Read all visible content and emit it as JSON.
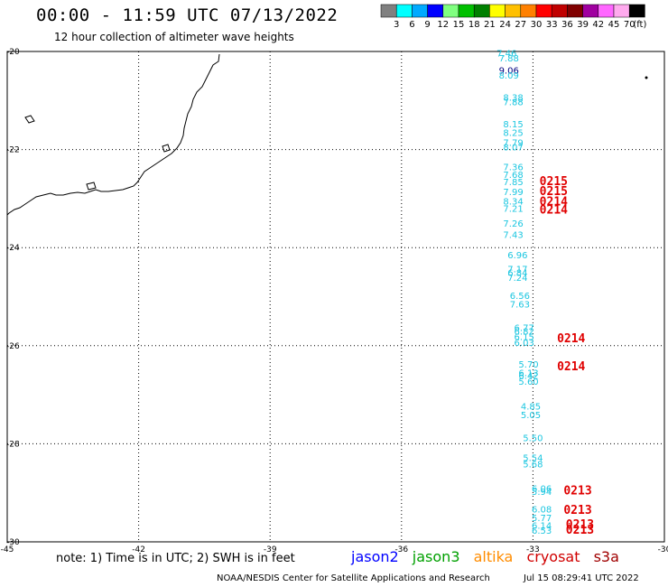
{
  "header": {
    "title": "00:00 - 11:59 UTC 07/13/2022",
    "subtitle": "12 hour collection of altimeter wave heights"
  },
  "color_scale": {
    "labels": [
      "3",
      "6",
      "9",
      "12",
      "15",
      "18",
      "21",
      "24",
      "27",
      "30",
      "33",
      "36",
      "39",
      "42",
      "45",
      "70"
    ],
    "unit": "(ft)",
    "colors": [
      "#808080",
      "#00ffff",
      "#00aaff",
      "#0000ff",
      "#80ff80",
      "#00c000",
      "#008000",
      "#ffff00",
      "#ffc000",
      "#ff8000",
      "#ff0000",
      "#c00000",
      "#800000",
      "#a000a0",
      "#ff66ff",
      "#ffaaee",
      "#000000"
    ]
  },
  "axes": {
    "lon_labels": [
      "-45",
      "-42",
      "-39",
      "-36",
      "-33",
      "-30"
    ],
    "lat_labels": [
      "-20",
      "-22",
      "-24",
      "-26",
      "-28",
      "-30"
    ]
  },
  "wave_heights": {
    "color": "#1bc6e0",
    "dark_color": "#000080",
    "values": [
      {
        "v": "7.46",
        "lon": -33.6,
        "lat": -20.1
      },
      {
        "v": "7.88",
        "lon": -33.55,
        "lat": -20.2
      },
      {
        "v": "9.06",
        "lon": -33.55,
        "lat": -20.45,
        "dark": true
      },
      {
        "v": "8.09",
        "lon": -33.55,
        "lat": -20.55
      },
      {
        "v": "8.38",
        "lon": -33.45,
        "lat": -21.0
      },
      {
        "v": "7.88",
        "lon": -33.45,
        "lat": -21.1
      },
      {
        "v": "8.15",
        "lon": -33.45,
        "lat": -21.55
      },
      {
        "v": "8.25",
        "lon": -33.45,
        "lat": -21.72
      },
      {
        "v": "7.79",
        "lon": -33.45,
        "lat": -21.92
      },
      {
        "v": "8.07",
        "lon": -33.45,
        "lat": -22.02
      },
      {
        "v": "7.36",
        "lon": -33.45,
        "lat": -22.42
      },
      {
        "v": "7.68",
        "lon": -33.45,
        "lat": -22.58
      },
      {
        "v": "7.85",
        "lon": -33.45,
        "lat": -22.73
      },
      {
        "v": "7.99",
        "lon": -33.45,
        "lat": -22.93
      },
      {
        "v": "8.34",
        "lon": -33.45,
        "lat": -23.12
      },
      {
        "v": "7.21",
        "lon": -33.45,
        "lat": -23.27
      },
      {
        "v": "7.26",
        "lon": -33.45,
        "lat": -23.57
      },
      {
        "v": "7.43",
        "lon": -33.45,
        "lat": -23.8
      },
      {
        "v": "6.96",
        "lon": -33.35,
        "lat": -24.22
      },
      {
        "v": "7.17",
        "lon": -33.35,
        "lat": -24.5
      },
      {
        "v": "6.84",
        "lon": -33.35,
        "lat": -24.58
      },
      {
        "v": "7.24",
        "lon": -33.35,
        "lat": -24.68
      },
      {
        "v": "6.56",
        "lon": -33.3,
        "lat": -25.05
      },
      {
        "v": "7.63",
        "lon": -33.3,
        "lat": -25.22
      },
      {
        "v": "6.77",
        "lon": -33.2,
        "lat": -25.7
      },
      {
        "v": "6.82",
        "lon": -33.2,
        "lat": -25.77
      },
      {
        "v": "6.15",
        "lon": -33.2,
        "lat": -25.88
      },
      {
        "v": "6.03",
        "lon": -33.2,
        "lat": -26.0
      },
      {
        "v": "5.70",
        "lon": -33.1,
        "lat": -26.45
      },
      {
        "v": "6.13",
        "lon": -33.1,
        "lat": -26.62
      },
      {
        "v": "6.42",
        "lon": -33.1,
        "lat": -26.68
      },
      {
        "v": "5.60",
        "lon": -33.1,
        "lat": -26.8
      },
      {
        "v": "4.85",
        "lon": -33.05,
        "lat": -27.3
      },
      {
        "v": "5.05",
        "lon": -33.05,
        "lat": -27.48
      },
      {
        "v": "5.50",
        "lon": -33.0,
        "lat": -27.95
      },
      {
        "v": "5.54",
        "lon": -33.0,
        "lat": -28.35
      },
      {
        "v": "5.68",
        "lon": -33.0,
        "lat": -28.48
      },
      {
        "v": "6.06",
        "lon": -32.8,
        "lat": -28.98
      },
      {
        "v": "5.94",
        "lon": -32.8,
        "lat": -29.04
      },
      {
        "v": "6.08",
        "lon": -32.8,
        "lat": -29.4
      },
      {
        "v": "5.77",
        "lon": -32.8,
        "lat": -29.58
      },
      {
        "v": "6.14",
        "lon": -32.8,
        "lat": -29.73
      },
      {
        "v": "6.53",
        "lon": -32.8,
        "lat": -29.83
      }
    ]
  },
  "pass_times": [
    {
      "t": "0215",
      "lon": -32.85,
      "lat": -22.73
    },
    {
      "t": "0215",
      "lon": -32.85,
      "lat": -22.93
    },
    {
      "t": "0214",
      "lon": -32.85,
      "lat": -23.14
    },
    {
      "t": "0214",
      "lon": -32.85,
      "lat": -23.31
    },
    {
      "t": "0214",
      "lon": -32.45,
      "lat": -25.93
    },
    {
      "t": "0214",
      "lon": -32.45,
      "lat": -26.5
    },
    {
      "t": "0213",
      "lon": -32.3,
      "lat": -29.03
    },
    {
      "t": "0213",
      "lon": -32.3,
      "lat": -29.43
    },
    {
      "t": "0213",
      "lon": -32.25,
      "lat": -29.72
    },
    {
      "t": "0213",
      "lon": -32.25,
      "lat": -29.83
    }
  ],
  "footer": {
    "note": "note: 1) Time is in UTC; 2) SWH is in feet",
    "satellites": [
      {
        "name": "jason2",
        "color": "#0000ff"
      },
      {
        "name": "jason3",
        "color": "#00a000"
      },
      {
        "name": "altika",
        "color": "#ff8c00"
      },
      {
        "name": "cryosat",
        "color": "#d00000"
      },
      {
        "name": "s3a",
        "color": "#a00000"
      }
    ],
    "credit": "NOAA/NESDIS Center for Satellite Applications and Research",
    "timestamp": "Jul 15 08:29:41 UTC 2022"
  }
}
